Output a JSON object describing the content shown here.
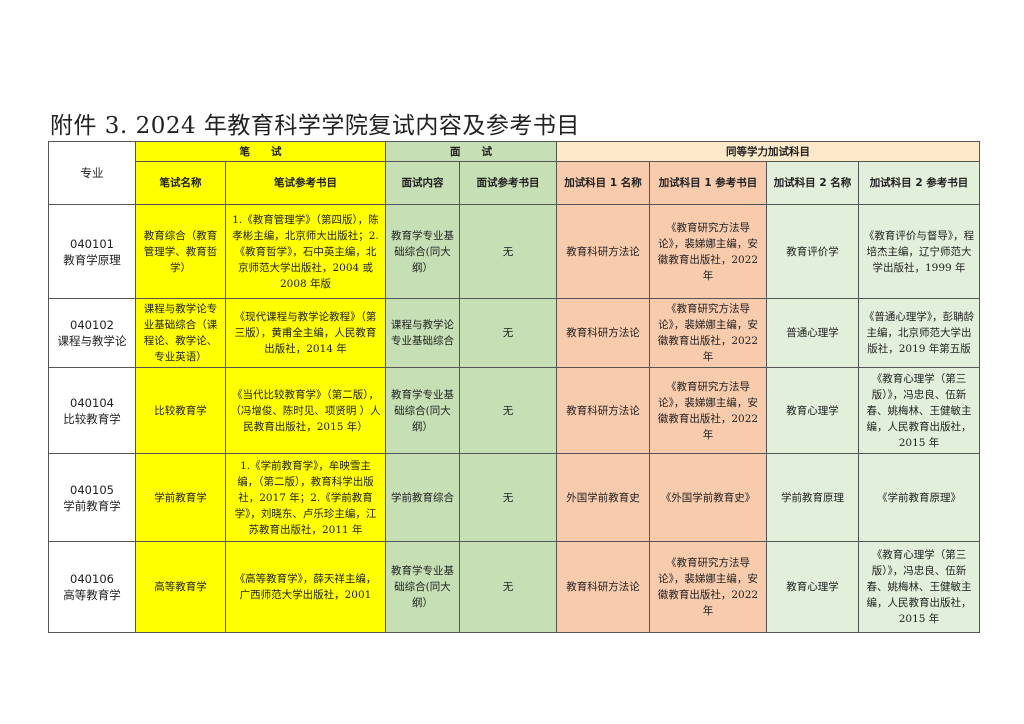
{
  "title": "附件 3.   2024 年教育科学学院复试内容及参考书目",
  "header": {
    "major": "专业",
    "written": "笔　　试",
    "interview": "面　　试",
    "extra": "同等学力加试科目",
    "cols": [
      "笔试名称",
      "笔试参考书目",
      "面试内容",
      "面试参考书目",
      "加试科目 1 名称",
      "加试科目 1 参考书目",
      "加试科目 2 名称",
      "加试科目 2 参考书目"
    ]
  },
  "colors": {
    "written": "#ffff00",
    "interview": "#c6dfb4",
    "extra_header": "#fde9c9",
    "extra1": "#f8cbad",
    "extra2": "#e2efda"
  },
  "rows": [
    {
      "code": "040101",
      "name": "教育学原理",
      "written_name": "教育综合（教育管理学、教育哲学）",
      "written_books": "1.《教育管理学》（第四版），陈孝彬主编，北京师大出版社；2.《教育哲学》，石中英主编，北京师范大学出版社，2004 或 2008 年版",
      "interview": "教育学专业基础综合(同大纲）",
      "interview_books": "无",
      "extra1_name": "教育科研方法论",
      "extra1_books": "《教育研究方法导论》，裴娣娜主编，安徽教育出版社，2022 年",
      "extra2_name": "教育评价学",
      "extra2_books": "《教育评价与督导》，程培杰主编，辽宁师范大学出版社，1999 年"
    },
    {
      "code": "040102",
      "name": "课程与教学论",
      "written_name": "课程与教学论专业基础综合（课程论、教学论、专业英语）",
      "written_books": "《现代课程与教学论教程》（第三版），黄甫全主编，人民教育出版社，2014 年",
      "interview": "课程与教学论专业基础综合",
      "interview_books": "无",
      "extra1_name": "教育科研方法论",
      "extra1_books": "《教育研究方法导论》，裴娣娜主编，安徽教育出版社，2022 年",
      "extra2_name": "普通心理学",
      "extra2_books": "《普通心理学》，彭聃龄主编，北京师范大学出版社，2019 年第五版"
    },
    {
      "code": "040104",
      "name": "比较教育学",
      "written_name": "比较教育学",
      "written_books": "《当代比较教育学》（第二版），（冯增俊、陈时见、项贤明 ）人民教育出版社，2015 年）",
      "interview": "教育学专业基础综合(同大纲）",
      "interview_books": "无",
      "extra1_name": "教育科研方法论",
      "extra1_books": "《教育研究方法导论》，裴娣娜主编，安徽教育出版社，2022 年",
      "extra2_name": "教育心理学",
      "extra2_books": "《教育心理学（第三版）》，冯忠良、伍新春、姚梅林、王健敏主编，人民教育出版社，2015 年"
    },
    {
      "code": "040105",
      "name": "学前教育学",
      "written_name": "学前教育学",
      "written_books": "1.《学前教育学》，牟映雪主编，（第二版），教育科学出版社，2017 年；2.《学前教育学》，刘晓东、卢乐珍主编，江苏教育出版社，2011 年",
      "interview": "学前教育综合",
      "interview_books": "无",
      "extra1_name": "外国学前教育史",
      "extra1_books": "《外国学前教育史》",
      "extra2_name": "学前教育原理",
      "extra2_books": "《学前教育原理》"
    },
    {
      "code": "040106",
      "name": "高等教育学",
      "written_name": "高等教育学",
      "written_books": "《高等教育学》，薛天祥主编，广西师范大学出版社，2001",
      "interview": "教育学专业基础综合(同大纲）",
      "interview_books": "无",
      "extra1_name": "教育科研方法论",
      "extra1_books": "《教育研究方法导论》，裴娣娜主编，安徽教育出版社，2022 年",
      "extra2_name": "教育心理学",
      "extra2_books": "《教育心理学（第三版）》，冯忠良、伍新春、姚梅林、王健敏主编，人民教育出版社，2015 年"
    }
  ]
}
